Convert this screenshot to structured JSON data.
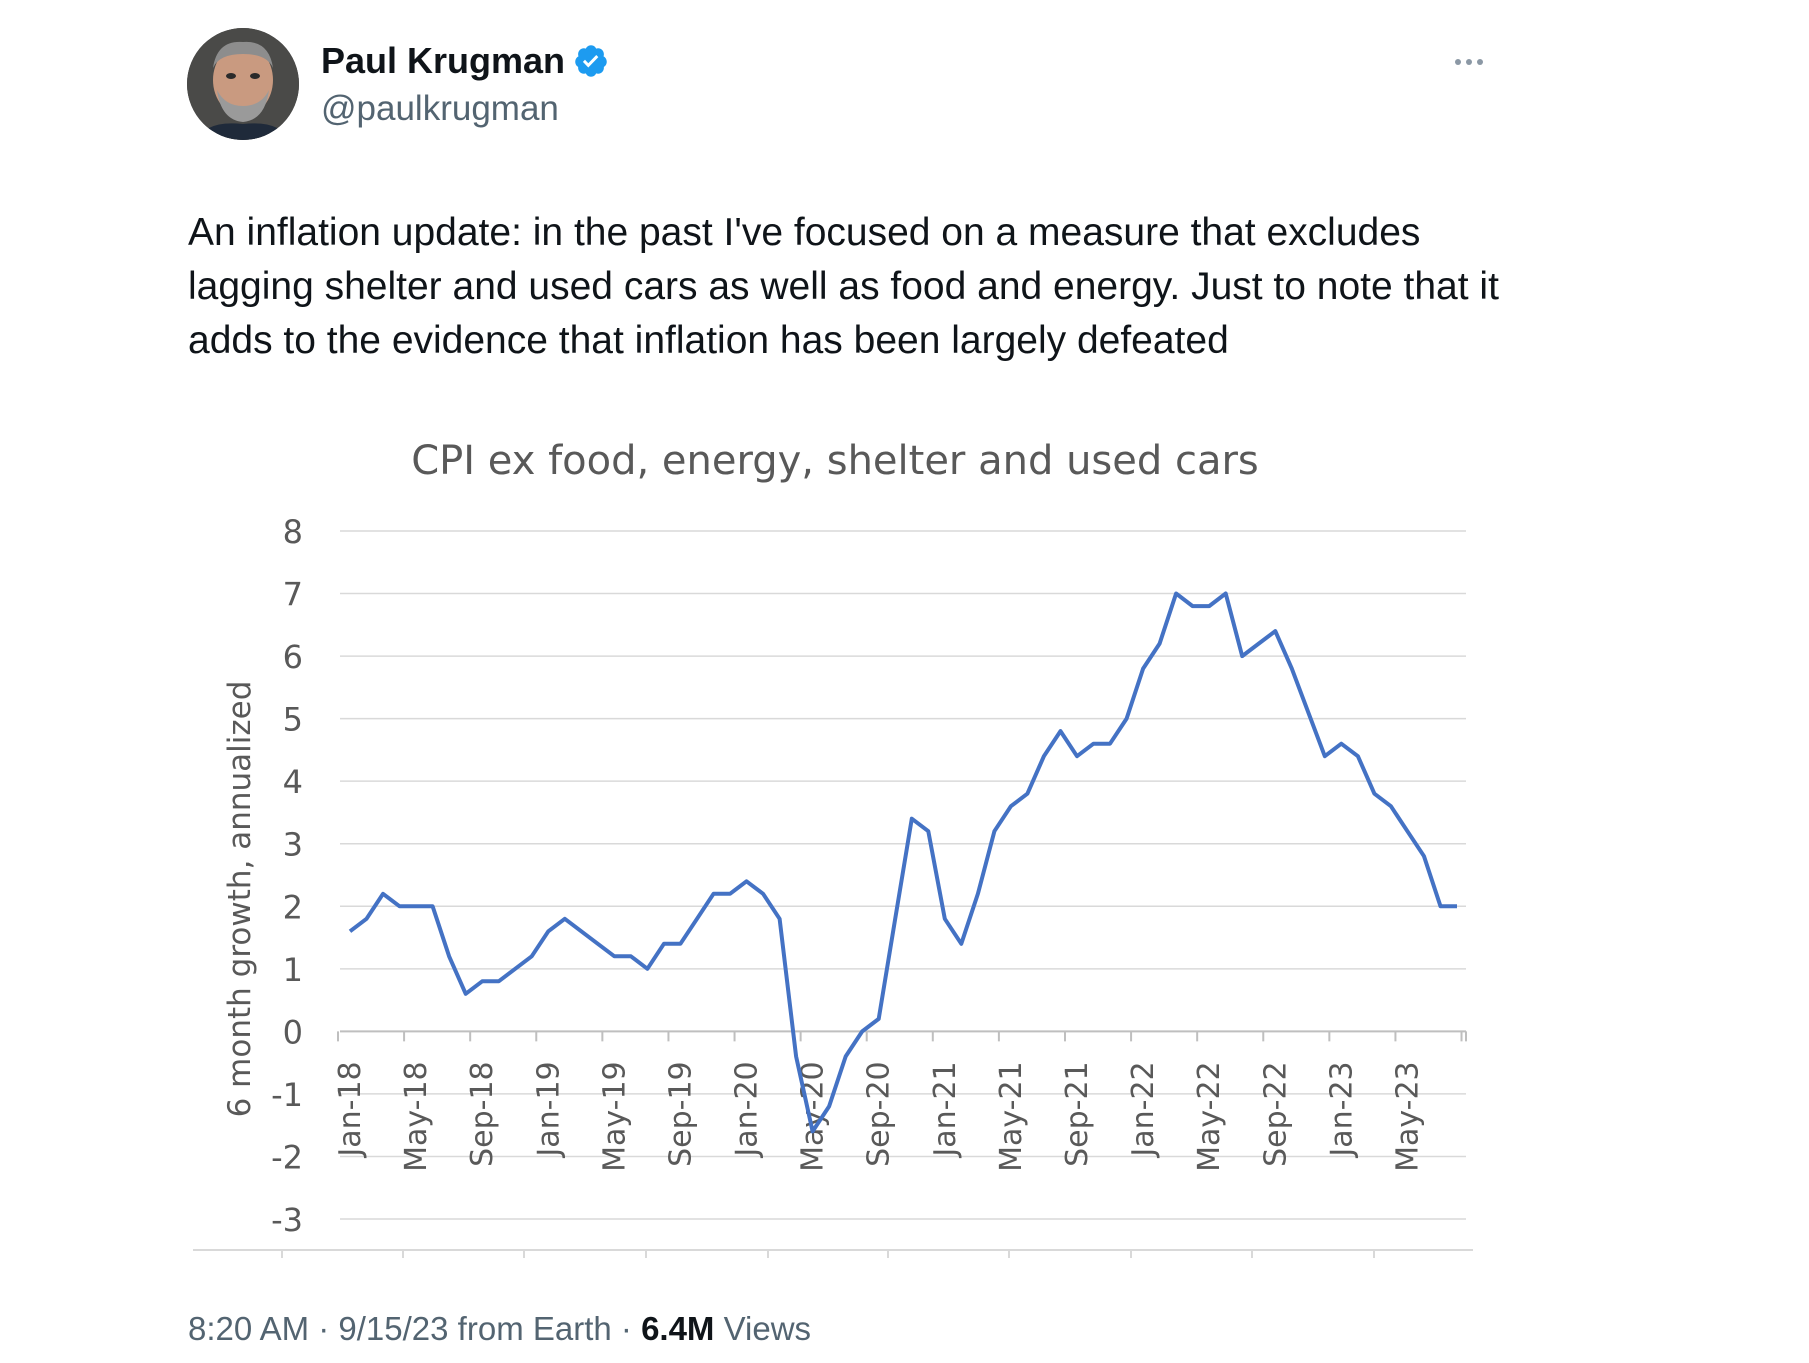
{
  "author": {
    "name": "Paul Krugman",
    "handle": "@paulkrugman",
    "verified": true,
    "verified_color": "#1d9bf0"
  },
  "icons": {
    "avatar": "avatar-photo",
    "verified": "verified-badge-icon",
    "more": "more-options-icon"
  },
  "tweet": {
    "text": "An inflation update: in the past I've focused on a measure that excludes lagging shelter and used cars as well as food and energy. Just to note that it adds to the evidence that inflation has been largely defeated"
  },
  "meta": {
    "time": "8:20 AM",
    "sep1": " · ",
    "date": "9/15/23 from Earth",
    "sep2": " · ",
    "views_count": "6.4M",
    "views_label": " Views"
  },
  "chart_data": {
    "type": "line",
    "title": "CPI ex food, energy, shelter and used cars",
    "ylabel": "6 month growth, annualized",
    "xlabel": "",
    "ylim": [
      -3,
      8
    ],
    "yticks": [
      8,
      7,
      6,
      5,
      4,
      3,
      2,
      1,
      0,
      -1,
      -2,
      -3
    ],
    "grid": true,
    "legend": "none",
    "line_color": "#4472c4",
    "x_tick_labels": [
      "Jan-18",
      "May-18",
      "Sep-18",
      "Jan-19",
      "May-19",
      "Sep-19",
      "Jan-20",
      "May-20",
      "Sep-20",
      "Jan-21",
      "May-21",
      "Sep-21",
      "Jan-22",
      "May-22",
      "Sep-22",
      "Jan-23",
      "May-23"
    ],
    "x": [
      "Jan-18",
      "Feb-18",
      "Mar-18",
      "Apr-18",
      "May-18",
      "Jun-18",
      "Jul-18",
      "Aug-18",
      "Sep-18",
      "Oct-18",
      "Nov-18",
      "Dec-18",
      "Jan-19",
      "Feb-19",
      "Mar-19",
      "Apr-19",
      "May-19",
      "Jun-19",
      "Jul-19",
      "Aug-19",
      "Sep-19",
      "Oct-19",
      "Nov-19",
      "Dec-19",
      "Jan-20",
      "Feb-20",
      "Mar-20",
      "Apr-20",
      "May-20",
      "Jun-20",
      "Jul-20",
      "Aug-20",
      "Sep-20",
      "Oct-20",
      "Nov-20",
      "Dec-20",
      "Jan-21",
      "Feb-21",
      "Mar-21",
      "Apr-21",
      "May-21",
      "Jun-21",
      "Jul-21",
      "Aug-21",
      "Sep-21",
      "Oct-21",
      "Nov-21",
      "Dec-21",
      "Jan-22",
      "Feb-22",
      "Mar-22",
      "Apr-22",
      "May-22",
      "Jun-22",
      "Jul-22",
      "Aug-22",
      "Sep-22",
      "Oct-22",
      "Nov-22",
      "Dec-22",
      "Jan-23",
      "Feb-23",
      "Mar-23",
      "Apr-23",
      "May-23",
      "Jun-23",
      "Jul-23",
      "Aug-23"
    ],
    "series": [
      {
        "values": [
          1.6,
          1.8,
          2.2,
          2.0,
          2.0,
          2.0,
          1.2,
          0.6,
          0.8,
          0.8,
          1.0,
          1.2,
          1.6,
          1.8,
          1.6,
          1.4,
          1.2,
          1.2,
          1.0,
          1.4,
          1.4,
          1.8,
          2.2,
          2.2,
          2.4,
          2.2,
          1.8,
          -0.4,
          -1.6,
          -1.2,
          -0.4,
          0.0,
          0.2,
          1.8,
          3.4,
          3.2,
          1.8,
          1.4,
          2.2,
          3.2,
          3.6,
          3.8,
          4.4,
          4.8,
          4.4,
          4.6,
          4.6,
          5.0,
          5.8,
          6.2,
          7.0,
          6.8,
          6.8,
          7.0,
          6.0,
          6.2,
          6.4,
          5.8,
          5.1,
          4.4,
          4.6,
          4.4,
          3.8,
          3.6,
          3.2,
          2.8,
          2.0,
          2.0
        ]
      }
    ]
  }
}
